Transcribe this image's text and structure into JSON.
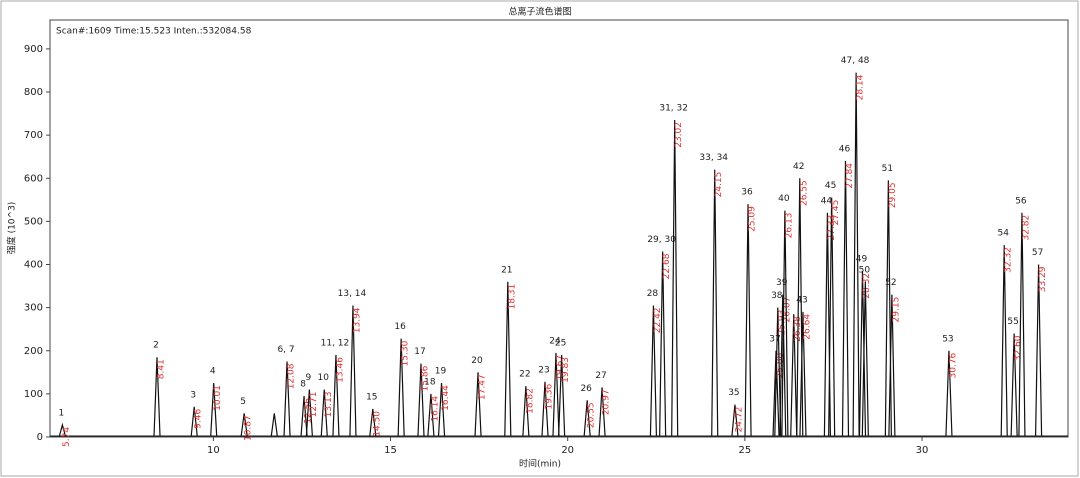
{
  "chart_data": {
    "type": "peak",
    "title": "总离子流色谱图",
    "info": "Scan#:1609  Time:15.523  Inten.:532084.58",
    "xlabel": "时间(min)",
    "ylabel": "强度 (10^3)",
    "color": "#111111",
    "label_color": "#e03030",
    "grid": false,
    "xlim": [
      5.39,
      34.12
    ],
    "ylim": [
      0,
      967
    ],
    "xticks": [
      10,
      15,
      20,
      25,
      30
    ],
    "yticks": [
      0,
      100,
      200,
      300,
      400,
      500,
      600,
      700,
      800,
      900
    ],
    "x": [
      5.74,
      8.41,
      9.46,
      10.01,
      10.87,
      11.72,
      12.08,
      12.56,
      12.71,
      13.13,
      13.46,
      13.94,
      14.5,
      15.3,
      15.86,
      16.14,
      16.44,
      17.47,
      18.31,
      18.82,
      19.36,
      19.67,
      19.83,
      20.55,
      20.97,
      22.42,
      22.68,
      23.02,
      24.15,
      24.72,
      25.09,
      25.88,
      25.93,
      26.07,
      26.13,
      26.38,
      26.55,
      26.64,
      27.33,
      27.45,
      27.84,
      28.14,
      28.32,
      28.4,
      29.05,
      29.15,
      30.76,
      32.32,
      32.6,
      32.82,
      33.29
    ],
    "values": [
      28,
      185,
      70,
      125,
      55,
      55,
      175,
      95,
      110,
      110,
      190,
      305,
      65,
      228,
      170,
      100,
      125,
      150,
      360,
      118,
      128,
      195,
      190,
      85,
      115,
      305,
      430,
      735,
      620,
      75,
      540,
      200,
      300,
      330,
      525,
      285,
      600,
      290,
      520,
      555,
      640,
      845,
      385,
      360,
      595,
      330,
      200,
      445,
      240,
      520,
      400
    ],
    "x_labels": [
      "5.74",
      "8.41",
      "9.46",
      "10.01",
      "10.87",
      null,
      "12.08",
      "12.56",
      "12.71",
      "13.13",
      "13.46",
      "13.94",
      "14.50",
      "15.30",
      "15.86",
      "16.14",
      "16.44",
      "17.47",
      "18.31",
      "18.82",
      "19.36",
      "19.67",
      "19.83",
      "20.55",
      "20.97",
      "22.42",
      "22.68",
      "23.02",
      "24.15",
      "24.72",
      "25.09",
      "25.88",
      "25.93",
      "26.07",
      "26.13",
      "26.38",
      "26.55",
      "26.64",
      "27.33",
      "27.45",
      "27.84",
      "28.14",
      "28.32",
      null,
      "29.05",
      "29.15",
      "30.76",
      "32.32",
      "32.60",
      "32.82",
      "33.29"
    ],
    "peak_labels": [
      "1",
      "2",
      "3",
      "4",
      "5",
      null,
      "6, 7",
      "8",
      "9",
      "10",
      "11, 12",
      "13, 14",
      "15",
      "16",
      "17",
      "18",
      "19",
      "20",
      "21",
      "22",
      "23",
      "24",
      "25",
      "26",
      "27",
      "28",
      "29, 30",
      "31, 32",
      "33, 34",
      "35",
      "36",
      "37",
      "38",
      "39",
      "40",
      null,
      "42",
      "43",
      "44",
      "45",
      "46",
      "47, 48",
      "49",
      "50",
      "51",
      "52",
      "53",
      "54",
      "55",
      "56",
      "57"
    ]
  }
}
